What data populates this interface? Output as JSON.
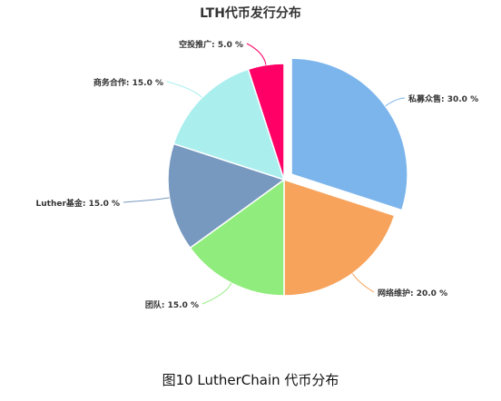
{
  "chart_data": {
    "type": "pie",
    "title": "LTH代币发行分布",
    "slices": [
      {
        "name": "私募众售",
        "value": 30.0,
        "label": "私募众售: 30.0 %",
        "color": "#7cb5ec",
        "exploded": true
      },
      {
        "name": "网络维护",
        "value": 20.0,
        "label": "网络维护: 20.0 %",
        "color": "#f7a35c",
        "exploded": false
      },
      {
        "name": "团队",
        "value": 15.0,
        "label": "团队: 15.0 %",
        "color": "#90ed7d",
        "exploded": false
      },
      {
        "name": "Luther基金",
        "value": 15.0,
        "label": "Luther基金: 15.0 %",
        "color": "#7798bf",
        "exploded": false
      },
      {
        "name": "商务合作",
        "value": 15.0,
        "label": "商务合作: 15.0 %",
        "color": "#aaeeee",
        "exploded": false
      },
      {
        "name": "空投推广",
        "value": 5.0,
        "label": "空投推广: 5.0 %",
        "color": "#ff0066",
        "exploded": false
      }
    ]
  },
  "caption": "图10 LutherChain 代币分布"
}
